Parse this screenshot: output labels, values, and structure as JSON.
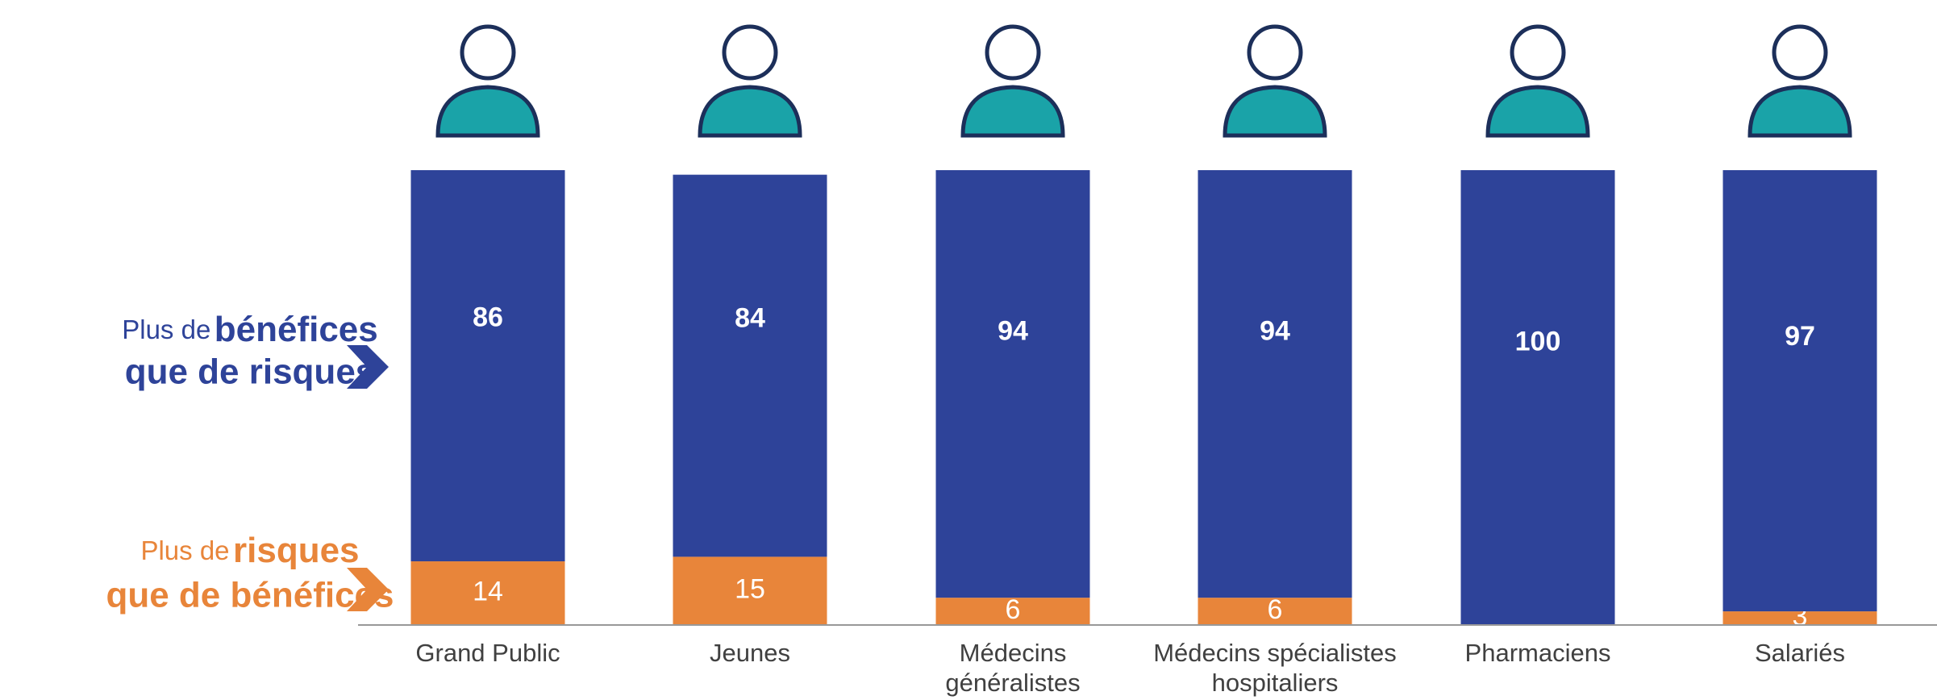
{
  "chart_data": {
    "type": "stacked-bar",
    "categories": [
      "Grand Public",
      "Jeunes",
      "Médecins\ngénéralistes",
      "Médecins spécialistes\nhospitaliers",
      "Pharmaciens",
      "Salariés"
    ],
    "ylim": [
      0,
      100
    ],
    "series": [
      {
        "name_parts": [
          "Plus de",
          "risques",
          "que de bénéfices"
        ],
        "color": "#e8853a",
        "values": [
          14,
          15,
          6,
          6,
          null,
          3
        ]
      },
      {
        "name_parts": [
          "Plus de",
          "bénéfices",
          "que de risques"
        ],
        "color": "#2e4399",
        "values": [
          86,
          84,
          94,
          94,
          100,
          97
        ]
      }
    ]
  }
}
